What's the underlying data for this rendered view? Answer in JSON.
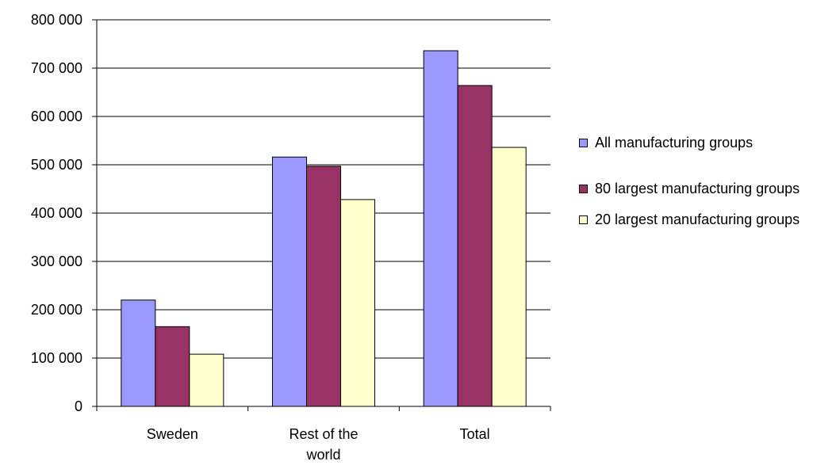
{
  "chart_data": {
    "type": "bar",
    "title": "",
    "xlabel": "",
    "ylabel": "",
    "categories": [
      "Sweden",
      "Rest of the world",
      "Total"
    ],
    "category_lines": [
      [
        "Sweden"
      ],
      [
        "Rest of the",
        "world"
      ],
      [
        "Total"
      ]
    ],
    "series": [
      {
        "name": "All manufacturing groups",
        "color": "#9999ff",
        "values": [
          220000,
          516000,
          736000
        ]
      },
      {
        "name": "80 largest manufacturing groups",
        "color": "#993366",
        "values": [
          165000,
          497000,
          664000
        ]
      },
      {
        "name": "20 largest manufacturing groups",
        "color": "#ffffcc",
        "values": [
          108000,
          428000,
          536000
        ]
      }
    ],
    "ylim": [
      0,
      800000
    ],
    "yticks": [
      0,
      100000,
      200000,
      300000,
      400000,
      500000,
      600000,
      700000,
      800000
    ],
    "ytick_labels": [
      "0",
      "100 000",
      "200 000",
      "300 000",
      "400 000",
      "500 000",
      "600 000",
      "700 000",
      "800 000"
    ],
    "grid": true,
    "legend_position": "right"
  }
}
